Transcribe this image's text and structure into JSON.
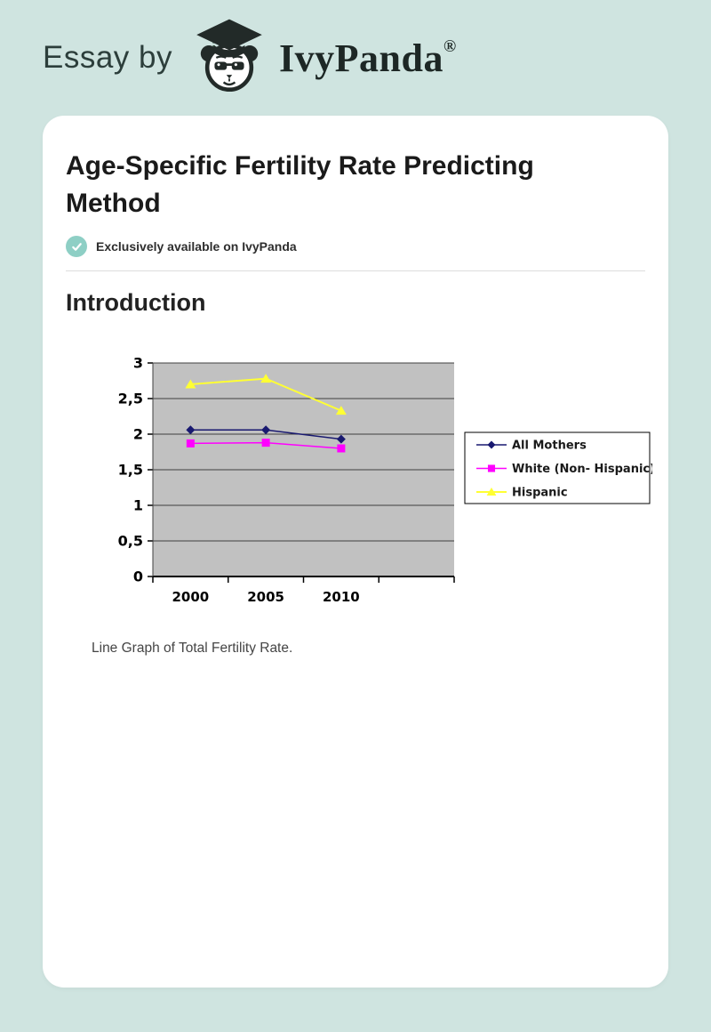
{
  "page": {
    "background_color": "#cfe4e0",
    "card_color": "#ffffff"
  },
  "header": {
    "prefix": "Essay by",
    "brand": "IvyPanda",
    "registered_mark": "®",
    "logo": "panda-graduate-logo",
    "leaf_color": "#4b9e4f",
    "ink_color": "#222a28"
  },
  "article": {
    "title": "Age-Specific Fertility Rate Predicting Method",
    "badge": {
      "icon": "check-icon",
      "text": "Exclusively available on IvyPanda",
      "color": "#8ecfc5"
    },
    "section_heading": "Introduction",
    "figure_caption": "Line Graph of Total Fertility Rate."
  },
  "chart_data": {
    "type": "line",
    "title": "",
    "xlabel": "",
    "ylabel": "",
    "x": [
      "2000",
      "2005",
      "2010"
    ],
    "series": [
      {
        "name": "All Mothers",
        "values": [
          2.06,
          2.06,
          1.93
        ],
        "color": "#191970",
        "marker": "diamond",
        "line_width": 1.5
      },
      {
        "name": "White (Non- Hispanic)",
        "values": [
          1.87,
          1.88,
          1.8
        ],
        "color": "#ff00ff",
        "marker": "square",
        "line_width": 1.5
      },
      {
        "name": "Hispanic",
        "values": [
          2.7,
          2.78,
          2.33
        ],
        "color": "#ffff33",
        "marker": "triangle",
        "line_width": 2
      }
    ],
    "ylim": [
      0,
      3
    ],
    "ytick_step": 0.5,
    "ytick_labels": [
      "0",
      "0,5",
      "1",
      "1,5",
      "2",
      "2,5",
      "3"
    ],
    "decimal_separator": ",",
    "x_axis_slots": 4,
    "plot_bg": "#c1c1c1",
    "grid": true,
    "gridline_color": "#404040",
    "axis_color": "#000000",
    "legend_position": "right",
    "legend_border": "#000000",
    "legend_bg": "#ffffff"
  }
}
